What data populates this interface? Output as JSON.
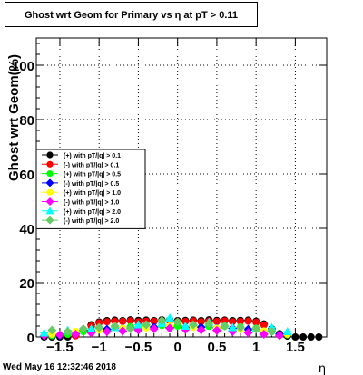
{
  "chart_data": {
    "type": "scatter",
    "title": "Ghost wrt Geom for Primary vs   η at pT > 0.11",
    "xlabel": "η",
    "ylabel": "Ghost wrt Geom(%)",
    "xlim": [
      -1.8,
      1.9
    ],
    "ylim": [
      0,
      110
    ],
    "x_ticks": [
      -1.5,
      -1,
      -0.5,
      0,
      0.5,
      1,
      1.5
    ],
    "x_tick_labels": [
      "−1.5",
      "−1",
      "−0.5",
      "0",
      "0.5",
      "1",
      "1.5"
    ],
    "y_ticks": [
      0,
      20,
      40,
      60,
      80,
      100
    ],
    "y_tick_labels": [
      "0",
      "20",
      "40",
      "60",
      "80",
      "100"
    ],
    "grid": true,
    "legend_position": "left-middle",
    "series": [
      {
        "name": "(+) with pT/|q| > 0.1",
        "color": "#000000",
        "marker": "circle",
        "x": [
          -1.7,
          -1.6,
          -1.5,
          -1.4,
          -1.3,
          -1.2,
          -1.1,
          -1.0,
          -0.9,
          -0.8,
          -0.7,
          -0.6,
          -0.5,
          -0.4,
          -0.3,
          -0.2,
          -0.1,
          0.0,
          0.1,
          0.2,
          0.3,
          0.4,
          0.5,
          0.6,
          0.7,
          0.8,
          0.9,
          1.0,
          1.1,
          1.2,
          1.3,
          1.4,
          1.5,
          1.6,
          1.7,
          1.8
        ],
        "y": [
          0,
          0,
          0,
          0,
          0.5,
          2.5,
          4.5,
          5.5,
          6.0,
          6.2,
          6.0,
          6.3,
          6.1,
          6.2,
          6.0,
          6.3,
          6.2,
          6.0,
          6.1,
          6.2,
          6.0,
          6.3,
          6.1,
          6.2,
          6.0,
          6.1,
          6.2,
          5.8,
          4.8,
          3.0,
          1.2,
          0.3,
          0,
          0,
          0,
          0
        ]
      },
      {
        "name": "(-) with pT/|q| > 0.1",
        "color": "#ff0000",
        "marker": "circle",
        "x": [
          -1.3,
          -1.2,
          -1.1,
          -1.0,
          -0.9,
          -0.8,
          -0.7,
          -0.6,
          -0.5,
          -0.4,
          -0.3,
          -0.2,
          -0.1,
          0.0,
          0.1,
          0.2,
          0.3,
          0.4,
          0.5,
          0.6,
          0.7,
          0.8,
          0.9,
          1.0,
          1.1,
          1.2,
          1.3
        ],
        "y": [
          0.4,
          2.2,
          4.0,
          5.2,
          5.6,
          5.8,
          5.7,
          5.9,
          5.6,
          5.8,
          5.7,
          5.9,
          5.8,
          5.6,
          5.7,
          5.9,
          5.6,
          5.8,
          5.7,
          5.9,
          5.6,
          5.7,
          5.8,
          5.4,
          4.4,
          2.6,
          1.0
        ]
      },
      {
        "name": "(+) with pT/|q| > 0.5",
        "color": "#00ff00",
        "marker": "circle",
        "x": [
          -1.6,
          -1.4,
          -1.2,
          -1.0,
          -0.8,
          -0.6,
          -0.4,
          -0.2,
          0.0,
          0.2,
          0.4,
          0.6,
          0.8,
          1.0,
          1.2,
          1.4
        ],
        "y": [
          0.5,
          1.0,
          2.0,
          3.0,
          3.6,
          3.8,
          4.0,
          4.2,
          4.0,
          4.1,
          3.9,
          4.0,
          3.7,
          3.2,
          2.0,
          0.8
        ]
      },
      {
        "name": "(-) with pT/|q| > 0.5",
        "color": "#0000ff",
        "marker": "diamond",
        "x": [
          -1.5,
          -1.3,
          -1.1,
          -0.9,
          -0.7,
          -0.5,
          -0.3,
          -0.1,
          0.1,
          0.3,
          0.5,
          0.7,
          0.9,
          1.1,
          1.3
        ],
        "y": [
          0.6,
          1.2,
          2.2,
          2.8,
          3.2,
          3.4,
          3.6,
          3.5,
          3.4,
          3.6,
          3.3,
          3.2,
          2.8,
          2.0,
          1.0
        ]
      },
      {
        "name": "(+) with pT/|q| > 1.0",
        "color": "#ffff00",
        "marker": "circle",
        "x": [
          -1.6,
          -1.3,
          -1.0,
          -0.7,
          -0.4,
          -0.1,
          0.2,
          0.5,
          0.8,
          1.1,
          1.4
        ],
        "y": [
          1.0,
          2.0,
          2.6,
          3.2,
          3.4,
          4.0,
          3.6,
          3.2,
          2.8,
          2.2,
          1.0
        ]
      },
      {
        "name": "(-) with pT/|q| > 1.0",
        "color": "#ff00ff",
        "marker": "diamond",
        "x": [
          -1.7,
          -1.5,
          -1.3,
          -1.1,
          -0.9,
          -0.7,
          -0.5,
          -0.3,
          -0.1,
          0.1,
          0.3,
          0.5,
          0.7,
          0.9,
          1.1,
          1.3
        ],
        "y": [
          0.5,
          0.8,
          1.0,
          1.5,
          2.0,
          2.2,
          2.6,
          3.0,
          3.2,
          2.8,
          2.6,
          2.4,
          2.0,
          1.6,
          1.0,
          0.5
        ]
      },
      {
        "name": "(+) with pT/|q| > 2.0",
        "color": "#00ffff",
        "marker": "triangle",
        "x": [
          -1.7,
          -1.4,
          -1.1,
          -0.8,
          -0.5,
          -0.2,
          -0.1,
          0.1,
          0.4,
          0.7,
          1.0,
          1.2,
          1.4
        ],
        "y": [
          1.5,
          2.5,
          3.0,
          3.5,
          4.5,
          5.0,
          7.0,
          4.0,
          5.5,
          3.5,
          3.0,
          3.5,
          2.0
        ]
      },
      {
        "name": "(-) with pT/|q| > 2.0",
        "color": "#66cc66",
        "marker": "diamond",
        "x": [
          -1.6,
          -1.4,
          -1.2,
          -1.0,
          -0.8,
          -0.6,
          -0.4,
          -0.2,
          0.0,
          0.2,
          0.4,
          0.6,
          0.8,
          1.0,
          1.2
        ],
        "y": [
          2.5,
          2.0,
          3.0,
          3.5,
          4.0,
          3.0,
          4.5,
          6.0,
          5.5,
          4.5,
          5.0,
          4.0,
          3.5,
          3.0,
          2.0
        ]
      }
    ]
  },
  "footer": {
    "datetime": "Wed May 16 12:32:46 2018"
  }
}
